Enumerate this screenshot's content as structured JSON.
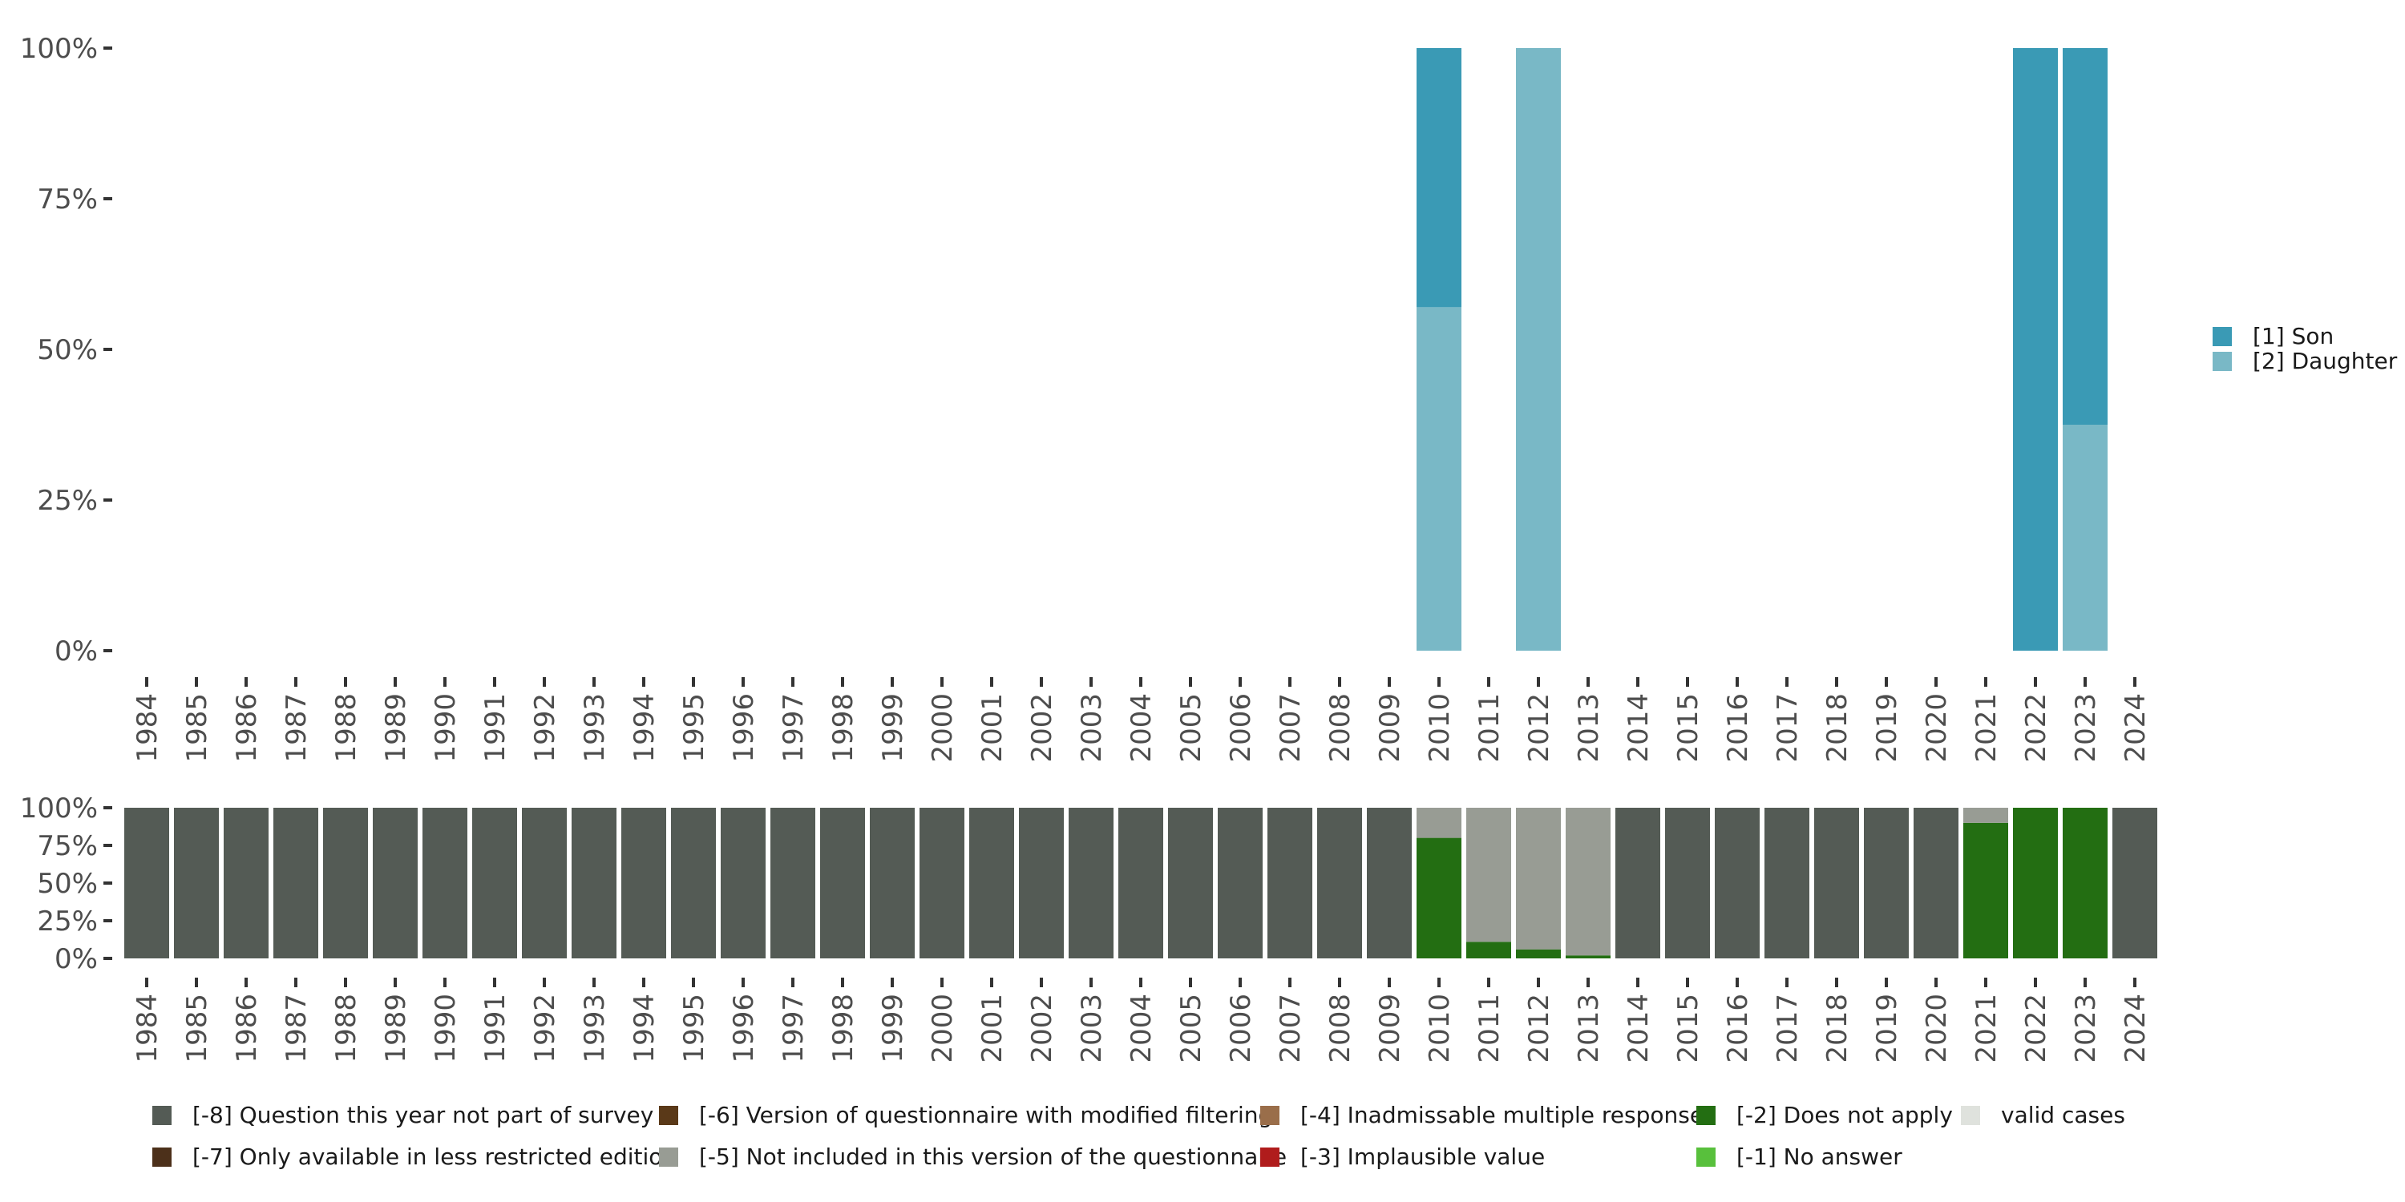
{
  "chart_data": [
    {
      "id": "main",
      "type": "bar",
      "stacked": true,
      "categories": [
        "1984",
        "1985",
        "1986",
        "1987",
        "1988",
        "1989",
        "1990",
        "1991",
        "1992",
        "1993",
        "1994",
        "1995",
        "1996",
        "1997",
        "1998",
        "1999",
        "2000",
        "2001",
        "2002",
        "2003",
        "2004",
        "2005",
        "2006",
        "2007",
        "2008",
        "2009",
        "2010",
        "2011",
        "2012",
        "2013",
        "2014",
        "2015",
        "2016",
        "2017",
        "2018",
        "2019",
        "2020",
        "2021",
        "2022",
        "2023",
        "2024"
      ],
      "y_ticks": [
        "0%",
        "25%",
        "50%",
        "75%",
        "100%"
      ],
      "ylim": [
        0,
        100
      ],
      "series": [
        {
          "name": "[2] Daughter",
          "color": "#79b8c6",
          "values": {
            "2010": 57,
            "2012": 100,
            "2022": 0,
            "2023": 37.5
          }
        },
        {
          "name": "[1] Son",
          "color": "#3a9ab5",
          "values": {
            "2010": 43,
            "2012": 0,
            "2022": 100,
            "2023": 62.5
          }
        }
      ],
      "legend": {
        "position": "right",
        "items": [
          {
            "label": "[1] Son",
            "color": "#3a9ab5"
          },
          {
            "label": "[2] Daughter",
            "color": "#79b8c6"
          }
        ]
      }
    },
    {
      "id": "missing",
      "type": "bar",
      "stacked": true,
      "categories": [
        "1984",
        "1985",
        "1986",
        "1987",
        "1988",
        "1989",
        "1990",
        "1991",
        "1992",
        "1993",
        "1994",
        "1995",
        "1996",
        "1997",
        "1998",
        "1999",
        "2000",
        "2001",
        "2002",
        "2003",
        "2004",
        "2005",
        "2006",
        "2007",
        "2008",
        "2009",
        "2010",
        "2011",
        "2012",
        "2013",
        "2014",
        "2015",
        "2016",
        "2017",
        "2018",
        "2019",
        "2020",
        "2021",
        "2022",
        "2023",
        "2024"
      ],
      "y_ticks": [
        "0%",
        "25%",
        "50%",
        "75%",
        "100%"
      ],
      "ylim": [
        0,
        100
      ],
      "series": [
        {
          "name": "[-2] Does not apply",
          "color": "#236e12",
          "values": {
            "2010": 80,
            "2011": 11,
            "2012": 6,
            "2013": 2,
            "2021": 90,
            "2022": 100,
            "2023": 100
          }
        },
        {
          "name": "[-5] Not included in this version of the questionnaire",
          "color": "#989c94",
          "values": {
            "2010": 20,
            "2011": 89,
            "2012": 94,
            "2013": 98,
            "2021": 10
          }
        },
        {
          "name": "[-8] Question this year not part of survey",
          "color": "#545b55",
          "default": 100,
          "values": {
            "2010": 0,
            "2011": 0,
            "2012": 0,
            "2013": 0,
            "2021": 0,
            "2022": 0,
            "2023": 0
          }
        }
      ],
      "legend": {
        "position": "bottom",
        "items": [
          {
            "label": "[-8] Question this year not part of survey",
            "color": "#545b55"
          },
          {
            "label": "[-7] Only available in less restricted edition",
            "color": "#4c301a"
          },
          {
            "label": "[-6] Version of questionnaire with modified filtering",
            "color": "#5a3918"
          },
          {
            "label": "[-5] Not included in this version of the questionnaire",
            "color": "#989c94"
          },
          {
            "label": "[-4] Inadmissable multiple response",
            "color": "#9a6e4a"
          },
          {
            "label": "[-3] Implausible value",
            "color": "#b01c1c"
          },
          {
            "label": "[-2] Does not apply",
            "color": "#236e12"
          },
          {
            "label": "[-1] No answer",
            "color": "#58c03c"
          },
          {
            "label": "valid cases",
            "color": "#dfe2dd"
          }
        ]
      }
    }
  ]
}
